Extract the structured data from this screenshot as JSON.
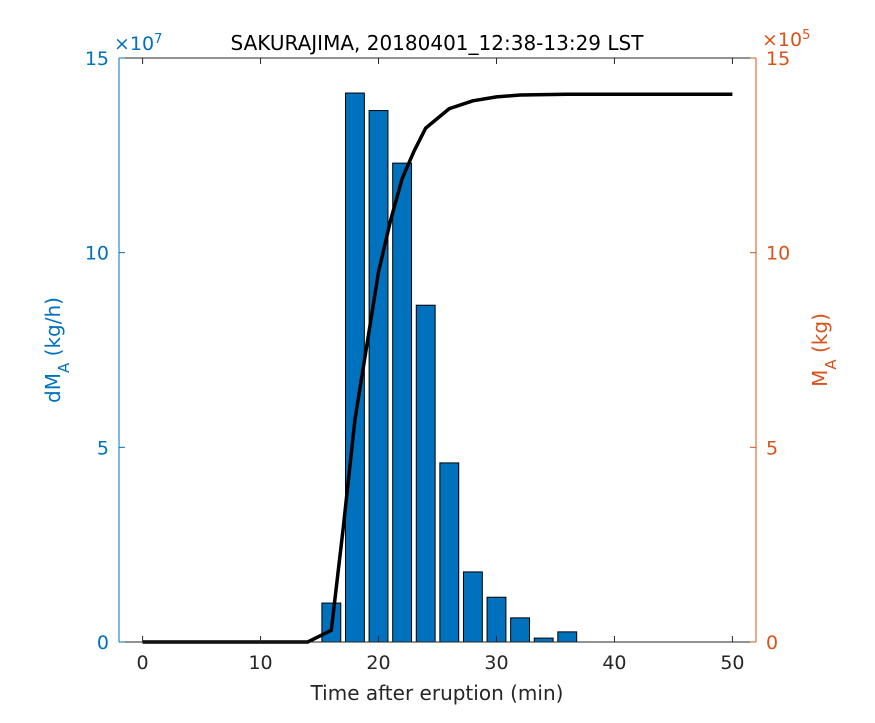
{
  "chart_data": {
    "type": "bar",
    "title": "SAKURAJIMA, 20180401_12:38-13:29 LST",
    "xlabel": "Time after eruption (min)",
    "ylabel_left": "dM_A (kg/h)",
    "ylabel_right": "M_A (kg)",
    "left_exponent_label": "×10^7",
    "right_exponent_label": "×10^5",
    "xlim": [
      -2,
      52
    ],
    "ylim_left": [
      0,
      15
    ],
    "ylim_right": [
      0,
      15
    ],
    "x_ticks": [
      0,
      10,
      20,
      30,
      40,
      50
    ],
    "y_ticks_left": [
      0,
      5,
      10,
      15
    ],
    "y_ticks_right": [
      0,
      5,
      10,
      15
    ],
    "colors": {
      "bars": "#0072BD",
      "left_axis": "#0072BD",
      "right_axis": "#D95319",
      "line": "#000000"
    },
    "series": [
      {
        "type": "bar",
        "axis": "left",
        "name": "dM_A",
        "x": [
          16,
          18,
          20,
          22,
          24,
          26,
          28,
          30,
          32,
          34,
          36
        ],
        "values": [
          1.0,
          14.1,
          13.65,
          12.3,
          8.65,
          4.6,
          1.8,
          1.15,
          0.62,
          0.1,
          0.26
        ]
      },
      {
        "type": "line",
        "axis": "right",
        "name": "M_A",
        "x": [
          0,
          14,
          16,
          17,
          18,
          19,
          20,
          21,
          22,
          23,
          24,
          26,
          28,
          30,
          32,
          36,
          40,
          50
        ],
        "values": [
          0,
          0,
          0.3,
          2.9,
          5.7,
          7.6,
          9.5,
          10.8,
          11.9,
          12.6,
          13.2,
          13.7,
          13.9,
          14.0,
          14.05,
          14.07,
          14.07,
          14.07
        ]
      }
    ]
  }
}
